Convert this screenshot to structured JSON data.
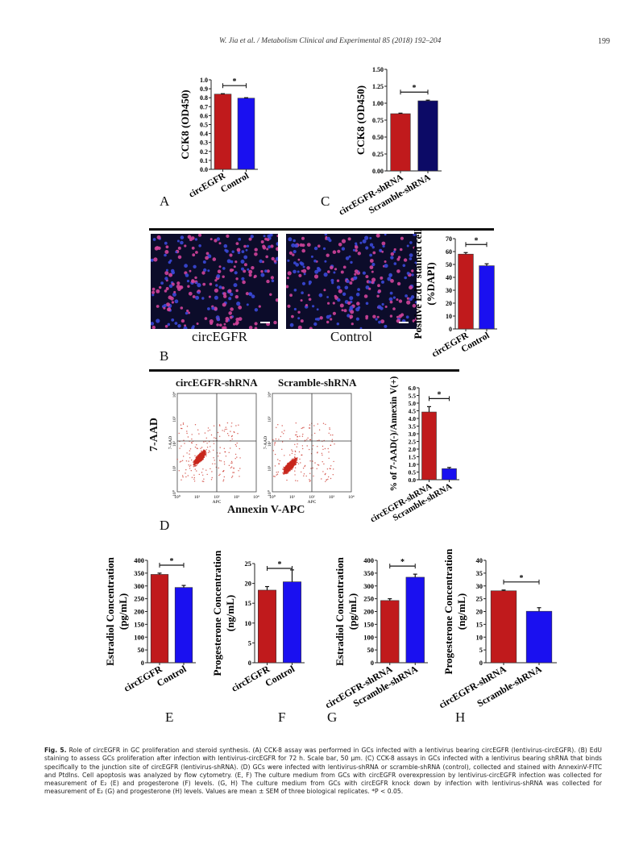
{
  "header": {
    "running_title": "W. Jia et al. / Metabolism Clinical and Experimental 85 (2018) 192–204",
    "page_number": "199"
  },
  "panels": {
    "A": "A",
    "B": "B",
    "C": "C",
    "D": "D",
    "E": "E",
    "F": "F",
    "G": "G",
    "H": "H"
  },
  "panel_b_images": {
    "left_label": "circEGFR",
    "right_label": "Control"
  },
  "panel_d_flow": {
    "left_title": "circEGFR-shRNA",
    "right_title": "Scramble-shRNA",
    "y_axis_label": "7-AAD",
    "x_axis_label": "Annexin V-APC",
    "small_x_label": "APC",
    "small_y_label": "7-AAD",
    "ticks": [
      "10⁰",
      "10¹",
      "10²",
      "10³",
      "10⁴"
    ]
  },
  "colors": {
    "red": "#c01a1c",
    "blue": "#1a10f0",
    "navy": "#0c0a66"
  },
  "chart_data": [
    {
      "id": "A",
      "type": "bar",
      "ylabel": "CCK8 (OD450)",
      "categories": [
        "circEGFR",
        "Control"
      ],
      "values": [
        0.84,
        0.795
      ],
      "errors": [
        0.005,
        0.005
      ],
      "ylim": [
        0,
        1.0
      ],
      "yticks": [
        "0.0",
        "0.1",
        "0.2",
        "0.3",
        "0.4",
        "0.5",
        "0.6",
        "0.7",
        "0.8",
        "0.9",
        "1.0"
      ],
      "significance": "*",
      "colors": [
        "red",
        "blue"
      ]
    },
    {
      "id": "C",
      "type": "bar",
      "ylabel": "CCK8 (OD450)",
      "categories": [
        "circEGFR-shRNA",
        "Scramble-shRNA"
      ],
      "values": [
        0.845,
        1.035
      ],
      "errors": [
        0.008,
        0.01
      ],
      "ylim": [
        0,
        1.5
      ],
      "yticks": [
        "0.00",
        "0.25",
        "0.50",
        "0.75",
        "1.00",
        "1.25",
        "1.50"
      ],
      "significance": "*",
      "colors": [
        "red",
        "navy"
      ]
    },
    {
      "id": "B",
      "type": "bar",
      "ylabel": "Positive EdU stained cell (%DAPI)",
      "categories": [
        "circEGFR",
        "Control"
      ],
      "values": [
        58,
        49
      ],
      "errors": [
        1.2,
        1.5
      ],
      "ylim": [
        0,
        70
      ],
      "yticks": [
        "0",
        "10",
        "20",
        "30",
        "40",
        "50",
        "60",
        "70"
      ],
      "significance": "*",
      "colors": [
        "red",
        "blue"
      ]
    },
    {
      "id": "D",
      "type": "bar",
      "ylabel": "% of 7-AAD(-)/Annexin V(+)",
      "categories": [
        "circEGFR-shRNA",
        "Scramble-shRNA"
      ],
      "values": [
        4.42,
        0.72
      ],
      "errors": [
        0.35,
        0.08
      ],
      "ylim": [
        0,
        6.0
      ],
      "yticks": [
        "0.0",
        "0.5",
        "1.0",
        "1.5",
        "2.0",
        "2.5",
        "3.0",
        "3.5",
        "4.0",
        "4.5",
        "5.0",
        "5.5",
        "6.0"
      ],
      "significance": "*",
      "colors": [
        "red",
        "blue"
      ]
    },
    {
      "id": "E",
      "type": "bar",
      "ylabel": "Estradiol Concentration (pg/mL)",
      "categories": [
        "circEGFR",
        "Control"
      ],
      "values": [
        345,
        294
      ],
      "errors": [
        5,
        8
      ],
      "ylim": [
        0,
        400
      ],
      "yticks": [
        "0",
        "50",
        "100",
        "150",
        "200",
        "250",
        "300",
        "350",
        "400"
      ],
      "significance": "*",
      "colors": [
        "red",
        "blue"
      ]
    },
    {
      "id": "F",
      "type": "bar",
      "ylabel": "Progesterone Concentration (ng/mL)",
      "categories": [
        "circEGFR",
        "Control"
      ],
      "values": [
        18.3,
        20.4
      ],
      "errors": [
        0.9,
        3.0
      ],
      "ylim": [
        0,
        25
      ],
      "yticks": [
        "0",
        "5",
        "10",
        "15",
        "20",
        "25"
      ],
      "significance": "*",
      "colors": [
        "red",
        "blue"
      ]
    },
    {
      "id": "G",
      "type": "bar",
      "ylabel": "Estradiol Concentration (pg/mL)",
      "categories": [
        "circEGFR-shRNA",
        "Scramble-shRNA"
      ],
      "values": [
        243,
        334
      ],
      "errors": [
        7,
        12
      ],
      "ylim": [
        0,
        400
      ],
      "yticks": [
        "0",
        "50",
        "100",
        "150",
        "200",
        "250",
        "300",
        "350",
        "400"
      ],
      "significance": "*",
      "colors": [
        "red",
        "blue"
      ]
    },
    {
      "id": "H",
      "type": "bar",
      "ylabel": "Progesterone Concentration (ng/mL)",
      "categories": [
        "circEGFR-shRNA",
        "Scramble-shRNA"
      ],
      "values": [
        28.1,
        20.1
      ],
      "errors": [
        0.3,
        1.4
      ],
      "ylim": [
        0,
        40
      ],
      "yticks": [
        "0",
        "5",
        "10",
        "15",
        "20",
        "25",
        "30",
        "35",
        "40"
      ],
      "significance": "*",
      "colors": [
        "red",
        "blue"
      ]
    }
  ],
  "caption": {
    "label": "Fig. 5.",
    "text": "Role of circEGFR in GC proliferation and steroid synthesis. (A) CCK-8 assay was performed in GCs infected with a lentivirus bearing circEGFR (lentivirus-circEGFR). (B) EdU staining to assess GCs proliferation after infection with lentivirus-circEGFR for 72 h. Scale bar, 50 μm. (C) CCK-8 assays in GCs infected with a lentivirus bearing shRNA that binds specifically to the junction site of circEGFR (lentivirus-shRNA). (D) GCs were infected with lentivirus-shRNA or scramble-shRNA (control), collected and stained with AnnexinV-FITC and PtdIns. Cell apoptosis was analyzed by flow cytometry. (E, F) The culture medium from GCs with circEGFR overexpression by lentivirus-circEGFR infection was collected for measurement of E₂ (E) and progesterone (F) levels. (G, H) The culture medium from GCs with circEGFR knock down by infection with lentivirus-shRNA was collected for measurement of E₂ (G) and progesterone (H) levels. Values are mean ± SEM of three biological replicates. *P < 0.05."
  }
}
